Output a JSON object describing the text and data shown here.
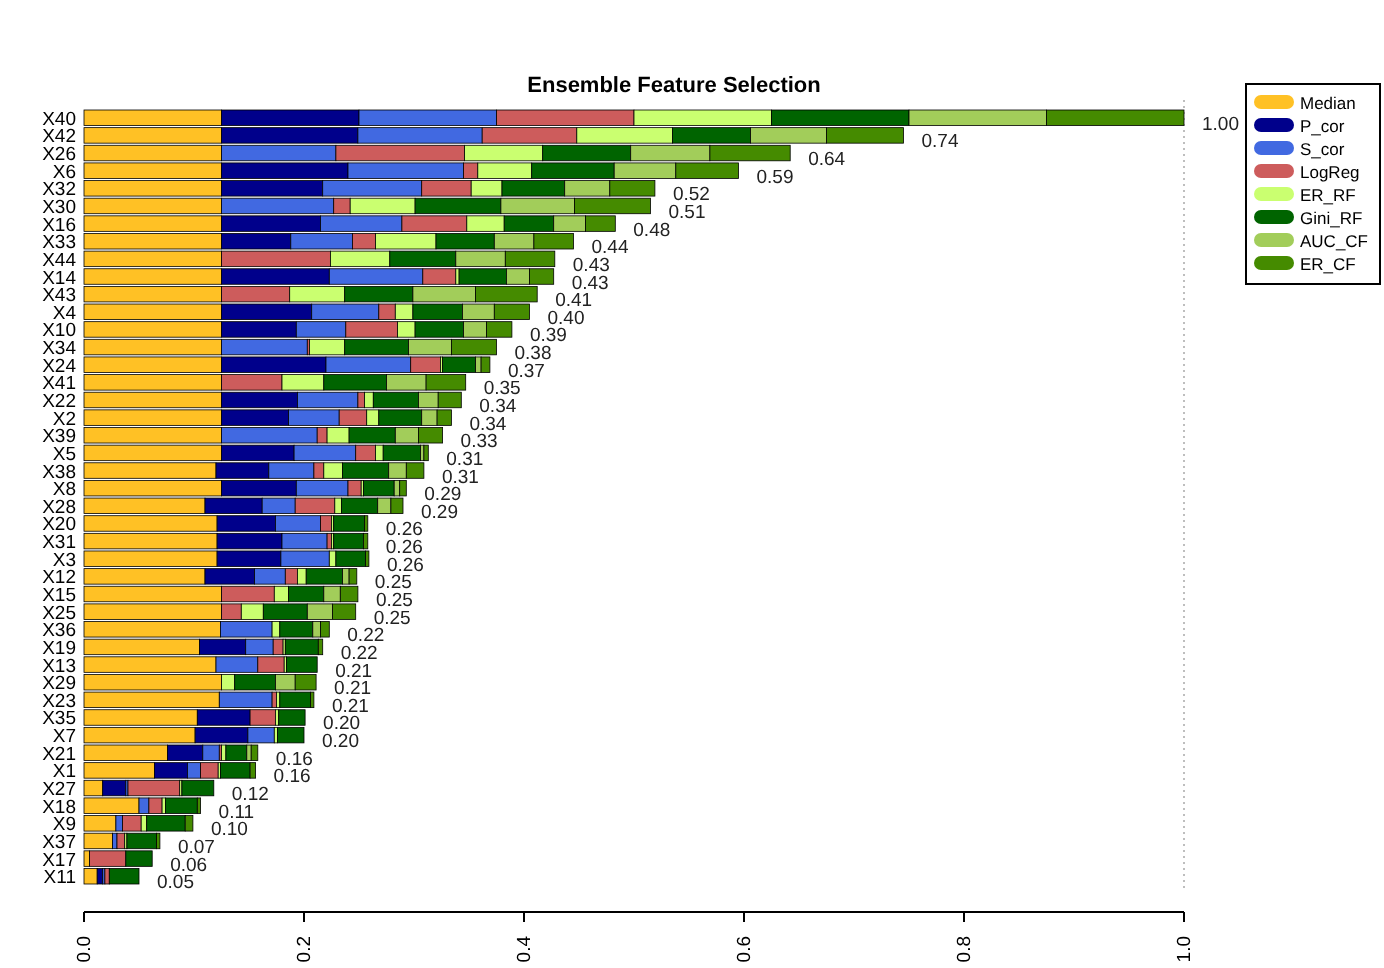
{
  "chart_data": {
    "type": "bar",
    "orientation": "horizontal",
    "stacked": true,
    "title": "Ensemble Feature Selection",
    "categories": [
      "X40",
      "X42",
      "X26",
      "X6",
      "X32",
      "X30",
      "X16",
      "X33",
      "X44",
      "X14",
      "X43",
      "X4",
      "X10",
      "X34",
      "X24",
      "X41",
      "X22",
      "X2",
      "X39",
      "X5",
      "X38",
      "X8",
      "X28",
      "X20",
      "X31",
      "X3",
      "X12",
      "X15",
      "X25",
      "X36",
      "X19",
      "X13",
      "X29",
      "X23",
      "X35",
      "X7",
      "X21",
      "X1",
      "X27",
      "X18",
      "X9",
      "X37",
      "X17",
      "X11"
    ],
    "series": [
      {
        "name": "Median",
        "color": "#ffc125",
        "values": [
          0.125,
          0.125,
          0.125,
          0.125,
          0.125,
          0.125,
          0.125,
          0.125,
          0.125,
          0.125,
          0.125,
          0.125,
          0.125,
          0.125,
          0.125,
          0.125,
          0.125,
          0.125,
          0.125,
          0.125,
          0.12,
          0.125,
          0.11,
          0.121,
          0.121,
          0.121,
          0.11,
          0.125,
          0.125,
          0.124,
          0.105,
          0.12,
          0.125,
          0.123,
          0.103,
          0.101,
          0.076,
          0.064,
          0.017,
          0.05,
          0.029,
          0.026,
          0.005,
          0.012
        ]
      },
      {
        "name": "P_cor",
        "color": "#00008b",
        "values": [
          0.125,
          0.124,
          0,
          0.115,
          0.092,
          0,
          0.09,
          0.063,
          0,
          0.098,
          0,
          0.082,
          0.068,
          0,
          0.095,
          0,
          0.069,
          0.061,
          0,
          0.066,
          0.048,
          0.068,
          0.052,
          0.053,
          0.059,
          0.058,
          0.045,
          0,
          0,
          0,
          0.042,
          0,
          0,
          0,
          0.048,
          0.048,
          0.032,
          0.03,
          0.021,
          0,
          0,
          0,
          0,
          0.005
        ]
      },
      {
        "name": "S_cor",
        "color": "#4169e1",
        "values": [
          0.125,
          0.113,
          0.104,
          0.105,
          0.09,
          0.102,
          0.074,
          0.056,
          0,
          0.085,
          0,
          0.061,
          0.045,
          0.078,
          0.077,
          0,
          0.055,
          0.046,
          0.087,
          0.056,
          0.041,
          0.047,
          0.03,
          0.041,
          0.041,
          0.044,
          0.028,
          0,
          0,
          0.047,
          0.025,
          0.038,
          0,
          0.048,
          0,
          0.024,
          0.015,
          0.012,
          0.002,
          0.009,
          0.006,
          0.004,
          0,
          0.002
        ]
      },
      {
        "name": "LogReg",
        "color": "#cd5c5c",
        "values": [
          0.125,
          0.086,
          0.117,
          0.013,
          0.045,
          0.015,
          0.059,
          0.021,
          0.099,
          0.03,
          0.062,
          0.015,
          0.047,
          0.002,
          0.027,
          0.055,
          0.006,
          0.025,
          0.009,
          0.018,
          0.009,
          0.012,
          0.036,
          0.01,
          0.004,
          0,
          0.011,
          0.048,
          0.018,
          0,
          0.009,
          0.024,
          0,
          0.004,
          0.023,
          0,
          0.002,
          0.016,
          0.047,
          0.012,
          0.017,
          0.007,
          0.033,
          0.004
        ]
      },
      {
        "name": "ER_RF",
        "color": "#caff70",
        "values": [
          0.125,
          0.087,
          0.071,
          0.049,
          0.028,
          0.059,
          0.034,
          0.055,
          0.054,
          0.003,
          0.05,
          0.016,
          0.016,
          0.032,
          0.002,
          0.038,
          0.008,
          0.011,
          0.02,
          0.007,
          0.017,
          0.002,
          0.006,
          0.002,
          0.002,
          0.006,
          0.008,
          0.013,
          0.02,
          0.007,
          0.002,
          0.002,
          0.012,
          0.003,
          0.003,
          0.003,
          0.004,
          0.002,
          0.002,
          0.003,
          0.005,
          0.002,
          0,
          0
        ]
      },
      {
        "name": "Gini_RF",
        "color": "#006400",
        "values": [
          0.125,
          0.071,
          0.08,
          0.075,
          0.057,
          0.078,
          0.045,
          0.053,
          0.06,
          0.043,
          0.062,
          0.045,
          0.044,
          0.058,
          0.03,
          0.057,
          0.041,
          0.039,
          0.042,
          0.034,
          0.042,
          0.028,
          0.033,
          0.028,
          0.027,
          0.027,
          0.033,
          0.032,
          0.04,
          0.03,
          0.03,
          0.028,
          0.037,
          0.028,
          0.024,
          0.024,
          0.019,
          0.027,
          0.029,
          0.029,
          0.035,
          0.027,
          0.024,
          0.027
        ]
      },
      {
        "name": "AUC_CF",
        "color": "#a2cd5a",
        "values": [
          0.125,
          0.069,
          0.072,
          0.056,
          0.041,
          0.067,
          0.029,
          0.036,
          0.045,
          0.021,
          0.057,
          0.029,
          0.021,
          0.039,
          0.005,
          0.036,
          0.018,
          0.014,
          0.021,
          0.003,
          0.016,
          0.005,
          0.012,
          0,
          0,
          0,
          0.006,
          0.015,
          0.023,
          0.007,
          0,
          0,
          0.018,
          0,
          0,
          0,
          0.004,
          0,
          0,
          0,
          0,
          0,
          0,
          0
        ]
      },
      {
        "name": "ER_CF",
        "color": "#458b00",
        "values": [
          0.125,
          0.07,
          0.073,
          0.057,
          0.041,
          0.069,
          0.027,
          0.036,
          0.045,
          0.022,
          0.056,
          0.032,
          0.023,
          0.041,
          0.008,
          0.036,
          0.021,
          0.013,
          0.022,
          0.004,
          0.016,
          0.006,
          0.011,
          0.003,
          0.004,
          0.003,
          0.007,
          0.016,
          0.021,
          0.008,
          0.004,
          0,
          0.019,
          0.003,
          0,
          0,
          0.006,
          0.005,
          0,
          0.003,
          0.007,
          0.003,
          0,
          0
        ]
      }
    ],
    "totals": [
      "1.00",
      "0.74",
      "0.64",
      "0.59",
      "0.52",
      "0.51",
      "0.48",
      "0.44",
      "0.43",
      "0.43",
      "0.41",
      "0.40",
      "0.39",
      "0.38",
      "0.37",
      "0.35",
      "0.34",
      "0.34",
      "0.33",
      "0.31",
      "0.31",
      "0.29",
      "0.29",
      "0.26",
      "0.26",
      "0.26",
      "0.25",
      "0.25",
      "0.25",
      "0.22",
      "0.22",
      "0.21",
      "0.21",
      "0.21",
      "0.20",
      "0.20",
      "0.16",
      "0.16",
      "0.12",
      "0.11",
      "0.10",
      "0.07",
      "0.06",
      "0.05"
    ],
    "xlim": [
      0,
      1
    ],
    "xticks": [
      {
        "value": 0,
        "label": "0.0"
      },
      {
        "value": 0.2,
        "label": "0.2"
      },
      {
        "value": 0.4,
        "label": "0.4"
      },
      {
        "value": 0.6,
        "label": "0.6"
      },
      {
        "value": 0.8,
        "label": "0.8"
      },
      {
        "value": 1,
        "label": "1.0"
      }
    ],
    "ref_lines": [
      {
        "axis": "x",
        "value": 1,
        "color": "#bebebe",
        "line_style": "dotted"
      }
    ],
    "legend": "top right",
    "grid": false
  }
}
